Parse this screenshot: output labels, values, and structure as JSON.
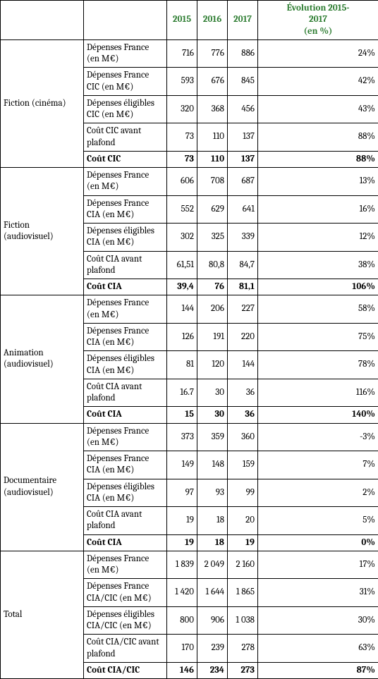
{
  "header": {
    "years": [
      "2015",
      "2016",
      "2017"
    ],
    "evo_line1": "Évolution 2015-",
    "evo_line2": "2017",
    "evo_line3": "(en %)"
  },
  "sections": [
    {
      "category": "Fiction (cinéma)",
      "rows": [
        {
          "label": "Dépenses France (en M€)",
          "v": [
            "716",
            "776",
            "886"
          ],
          "evo": "24%"
        },
        {
          "label": "Dépenses France CIC (en M€)",
          "v": [
            "593",
            "676",
            "845"
          ],
          "evo": "42%"
        },
        {
          "label": "Dépenses éligibles CIC (en M€)",
          "v": [
            "320",
            "368",
            "456"
          ],
          "evo": "43%"
        },
        {
          "label": "Coût CIC avant plafond",
          "v": [
            "73",
            "110",
            "137"
          ],
          "evo": "88%"
        },
        {
          "label": "Coût CIC",
          "v": [
            "73",
            "110",
            "137"
          ],
          "evo": "88%",
          "bold": true
        }
      ]
    },
    {
      "category": "Fiction (audiovisuel)",
      "rows": [
        {
          "label": "Dépenses France (en M€)",
          "v": [
            "606",
            "708",
            "687"
          ],
          "evo": "13%"
        },
        {
          "label": "Dépenses France CIA (en M€)",
          "v": [
            "552",
            "629",
            "641"
          ],
          "evo": "16%"
        },
        {
          "label": "Dépenses éligibles CIA (en M€)",
          "v": [
            "302",
            "325",
            "339"
          ],
          "evo": "12%"
        },
        {
          "label": "Coût CIA avant plafond",
          "v": [
            "61,51",
            "80,8",
            "84,7"
          ],
          "evo": "38%"
        },
        {
          "label": "Coût CIA",
          "v": [
            "39,4",
            "76",
            "81,1"
          ],
          "evo": "106%",
          "bold": true
        }
      ]
    },
    {
      "category": "Animation (audiovisuel)",
      "rows": [
        {
          "label": "Dépenses France (en M€)",
          "v": [
            "144",
            "206",
            "227"
          ],
          "evo": "58%"
        },
        {
          "label": "Dépenses France CIA (en M€)",
          "v": [
            "126",
            "191",
            "220"
          ],
          "evo": "75%"
        },
        {
          "label": "Dépenses éligibles CIA (en M€)",
          "v": [
            "81",
            "120",
            "144"
          ],
          "evo": "78%"
        },
        {
          "label": "Coût CIA avant plafond",
          "v": [
            "16.7",
            "30",
            "36"
          ],
          "evo": "116%"
        },
        {
          "label": "Coût CIA",
          "v": [
            "15",
            "30",
            "36"
          ],
          "evo": "140%",
          "bold": true
        }
      ]
    },
    {
      "category": "Documentaire (audiovisuel)",
      "rows": [
        {
          "label": "Dépenses France (en M€)",
          "v": [
            "373",
            "359",
            "360"
          ],
          "evo": "-3%"
        },
        {
          "label": "Dépenses France CIA (en M€)",
          "v": [
            "149",
            "148",
            "159"
          ],
          "evo": "7%"
        },
        {
          "label": "Dépenses éligibles CIA (en M€)",
          "v": [
            "97",
            "93",
            "99"
          ],
          "evo": "2%"
        },
        {
          "label": "Coût CIA avant plafond",
          "v": [
            "19",
            "18",
            "20"
          ],
          "evo": "5%"
        },
        {
          "label": "Coût CIA",
          "v": [
            "19",
            "18",
            "19"
          ],
          "evo": "0%",
          "bold": true
        }
      ]
    },
    {
      "category": "Total",
      "rows": [
        {
          "label": "Dépenses France (en M€)",
          "v": [
            "1 839",
            "2 049",
            "2 160"
          ],
          "evo": "17%"
        },
        {
          "label": "Dépenses France CIA/CIC (en M€)",
          "v": [
            "1 420",
            "1 644",
            "1 865"
          ],
          "evo": "31%"
        },
        {
          "label": "Dépenses éligibles CIA/CIC (en M€)",
          "v": [
            "800",
            "906",
            "1 038"
          ],
          "evo": "30%"
        },
        {
          "label": "Coût CIA/CIC avant plafond",
          "v": [
            "170",
            "239",
            "278"
          ],
          "evo": "63%"
        },
        {
          "label": "Coût CIA/CIC",
          "v": [
            "146",
            "234",
            "273"
          ],
          "evo": "87%",
          "bold": true
        }
      ]
    }
  ]
}
